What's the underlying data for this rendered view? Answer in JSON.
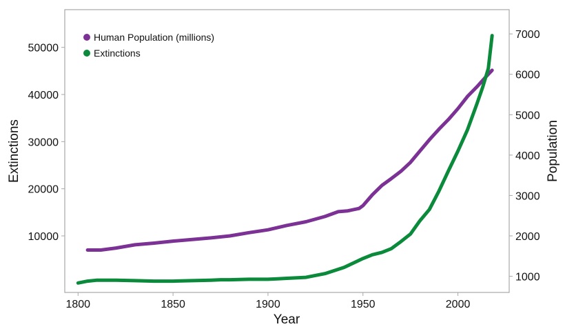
{
  "chart_data": {
    "type": "line",
    "title": "",
    "xlabel": "Year",
    "ylabel_left": "Extinctions",
    "ylabel_right": "Population",
    "xlim": [
      1793,
      2027
    ],
    "ylim_left": [
      -2000,
      58000
    ],
    "ylim_right": [
      600,
      7600
    ],
    "x_ticks": [
      "1800",
      "1850",
      "1900",
      "1950",
      "2000"
    ],
    "y_left_ticks": [
      "10000",
      "20000",
      "30000",
      "40000",
      "50000"
    ],
    "y_right_ticks": [
      "1000",
      "2000",
      "3000",
      "4000",
      "5000",
      "6000",
      "7000"
    ],
    "grid": false,
    "legend_position": "top-left",
    "series": [
      {
        "name": "Human Population (millions)",
        "axis": "right",
        "color": "#7b3294",
        "x": [
          1805,
          1812,
          1820,
          1830,
          1840,
          1850,
          1860,
          1870,
          1880,
          1890,
          1900,
          1910,
          1920,
          1930,
          1937,
          1942,
          1948,
          1950,
          1955,
          1960,
          1965,
          1970,
          1975,
          1980,
          1985,
          1990,
          1995,
          2000,
          2005,
          2010,
          2015,
          2018
        ],
        "values": [
          1650,
          1650,
          1700,
          1780,
          1820,
          1870,
          1910,
          1950,
          2000,
          2080,
          2150,
          2260,
          2350,
          2480,
          2600,
          2620,
          2680,
          2750,
          3020,
          3250,
          3420,
          3600,
          3820,
          4100,
          4380,
          4640,
          4880,
          5150,
          5450,
          5690,
          5950,
          6100
        ]
      },
      {
        "name": "Extinctions",
        "axis": "left",
        "color": "#0b8a3c",
        "x": [
          1800,
          1805,
          1810,
          1815,
          1820,
          1830,
          1840,
          1850,
          1860,
          1870,
          1875,
          1880,
          1890,
          1900,
          1905,
          1910,
          1920,
          1930,
          1940,
          1950,
          1955,
          1960,
          1965,
          1970,
          1975,
          1980,
          1985,
          1990,
          1995,
          2000,
          2005,
          2010,
          2013,
          2016,
          2018
        ],
        "values": [
          0,
          400,
          600,
          600,
          600,
          500,
          400,
          400,
          500,
          600,
          700,
          700,
          800,
          800,
          900,
          1000,
          1200,
          2000,
          3300,
          5200,
          6000,
          6500,
          7300,
          8800,
          10400,
          13200,
          15600,
          19500,
          23800,
          28000,
          32500,
          38000,
          41500,
          45500,
          52500
        ]
      }
    ]
  }
}
